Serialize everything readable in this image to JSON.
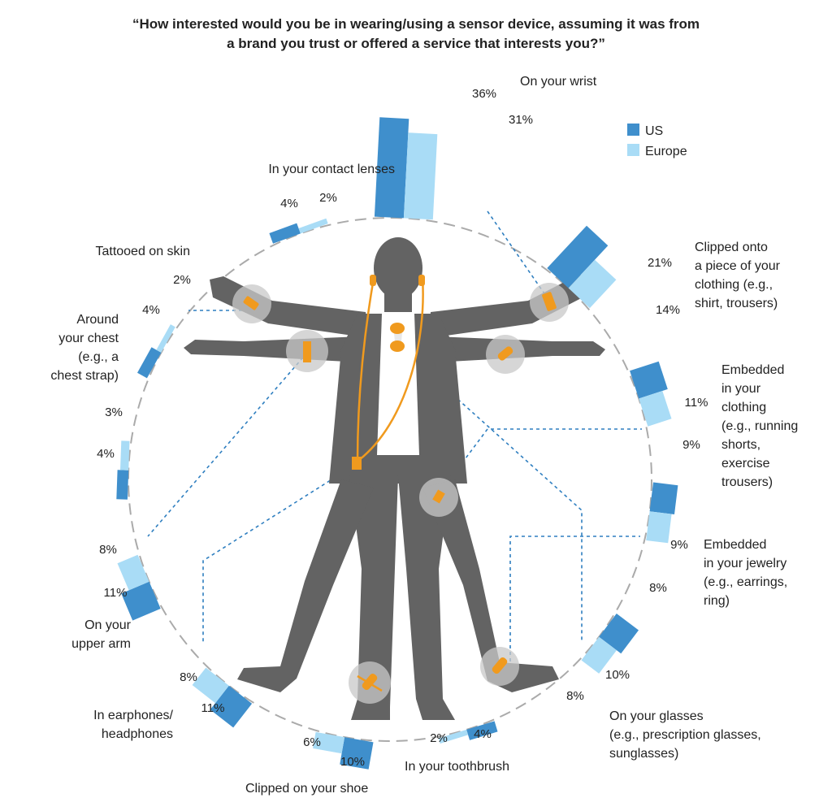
{
  "title": {
    "line1": "“How interested would you be in wearing/using a sensor device, assuming it was from",
    "line2": "a brand you trust or offered a service that interests you?”"
  },
  "colors": {
    "us": "#3f8fcc",
    "europe": "#a9dcf6",
    "figure": "#636363",
    "accent": "#f09a1e",
    "dash": "#2f7fc0",
    "ring": "#aaaaaa"
  },
  "chart_data": {
    "type": "bar",
    "subtype": "radial-bar",
    "title": "“How interested would you be in wearing/using a sensor device, assuming it was from a brand you trust or offered a service that interests you?”",
    "unit": "%",
    "legend": {
      "placement": "top-right",
      "entries": [
        "US",
        "Europe"
      ]
    },
    "series": [
      {
        "name": "US",
        "color": "#3f8fcc",
        "values": [
          36,
          21,
          11,
          9,
          10,
          4,
          10,
          11,
          11,
          4,
          4,
          4
        ]
      },
      {
        "name": "Europe",
        "color": "#a9dcf6",
        "values": [
          31,
          14,
          9,
          8,
          8,
          2,
          6,
          8,
          8,
          3,
          2,
          2
        ]
      }
    ],
    "categories": [
      "On your wrist",
      "Clipped onto a piece of your clothing (e.g., shirt, trousers)",
      "Embedded in your clothing (e.g., running shorts, exercise trousers)",
      "Embedded in your jewelry (e.g., earrings, ring)",
      "On your glasses (e.g., prescription glasses, sunglasses)",
      "In your toothbrush",
      "Clipped on your shoe",
      "In earphones/ headphones",
      "On your upper arm",
      "Around your chest (e.g., a chest strap)",
      "Tattooed on skin",
      "In your contact lenses"
    ],
    "category_lines": [
      [
        "On your wrist"
      ],
      [
        "Clipped onto",
        "a piece of your",
        "clothing (e.g.,",
        "shirt, trousers)"
      ],
      [
        "Embedded",
        "in your",
        "clothing",
        "(e.g., running",
        "shorts,",
        "exercise",
        "trousers)"
      ],
      [
        "Embedded",
        "in your jewelry",
        "(e.g., earrings,",
        "ring)"
      ],
      [
        "On your glasses",
        "(e.g., prescription glasses,",
        "sunglasses)"
      ],
      [
        "In your toothbrush"
      ],
      [
        "Clipped on your shoe"
      ],
      [
        "In earphones/",
        "headphones"
      ],
      [
        "On your",
        "upper arm"
      ],
      [
        "Around",
        "your chest",
        "(e.g., a",
        "chest strap)"
      ],
      [
        "Tattooed on skin"
      ],
      [
        "In your contact lenses"
      ]
    ],
    "value_labels": {
      "us": [
        "36%",
        "21%",
        "11%",
        "9%",
        "10%",
        "4%",
        "10%",
        "11%",
        "11%",
        "4%",
        "4%",
        "4%"
      ],
      "europe": [
        "31%",
        "14%",
        "9%",
        "8%",
        "8%",
        "2%",
        "6%",
        "8%",
        "8%",
        "3%",
        "2%",
        "2%"
      ]
    }
  }
}
